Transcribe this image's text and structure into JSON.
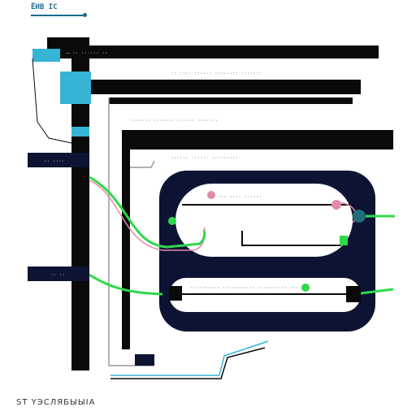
{
  "header": {
    "text": "ЁИВ ІС"
  },
  "footer": {
    "text": "ЅТ ҮЭСЛЯБЫЫІА"
  },
  "colors": {
    "navy": "#0d1433",
    "black": "#0a0a0a",
    "cyan": "#35b4d6",
    "green": "#2fd84a",
    "pink": "#e08aa8",
    "teal": "#1f6f78",
    "grey_line": "#9a9a9a"
  },
  "bars": [
    {
      "id": "bar-1",
      "label": "— ·· ······ ··"
    },
    {
      "id": "bar-2",
      "label": "·· ···· ······  ········ ·······"
    },
    {
      "id": "bar-3",
      "label": "······· ······· ······ ·······"
    },
    {
      "id": "bar-4",
      "label": "······ ······ ·········"
    }
  ],
  "left_nodes": [
    {
      "id": "node-1",
      "label": "·· ····"
    },
    {
      "id": "node-2",
      "label": "··· ····"
    },
    {
      "id": "node-3",
      "label": "·· ··"
    },
    {
      "id": "node-4",
      "label": "·· ····"
    }
  ],
  "loop": {
    "top_track_label": "··· ···· ······",
    "bottom_track_label": "·········· ··········· ·········· ·····"
  },
  "icons": [
    "pink-dot-icon",
    "green-marker-icon",
    "teal-badge-icon",
    "green-node-icon"
  ]
}
